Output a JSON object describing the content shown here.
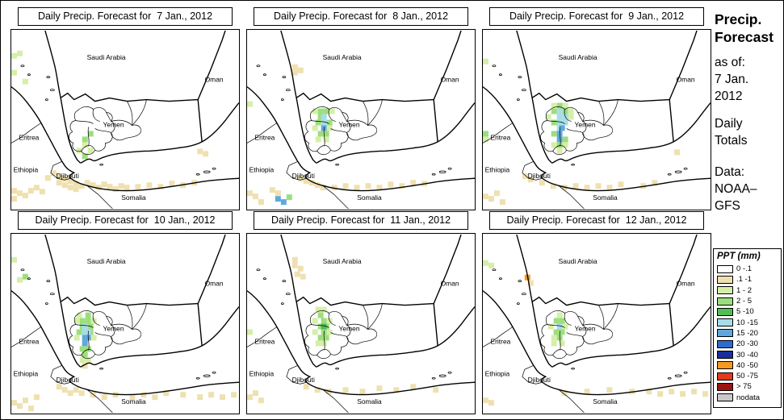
{
  "panels": [
    {
      "title": "Daily Precip. Forecast for  7 Jan., 2012"
    },
    {
      "title": "Daily Precip. Forecast for  8 Jan., 2012"
    },
    {
      "title": "Daily Precip. Forecast for  9 Jan., 2012"
    },
    {
      "title": "Daily Precip. Forecast for  10 Jan., 2012"
    },
    {
      "title": "Daily Precip. Forecast for  11 Jan., 2012"
    },
    {
      "title": "Daily Precip. Forecast for  12 Jan., 2012"
    }
  ],
  "map_labels": {
    "saudi_arabia": "Saudi Arabia",
    "oman": "Oman",
    "yemen": "Yemen",
    "eritrea": "Eritrea",
    "ethiopia": "Ethiopia",
    "djibouti": "Djibouti",
    "somalia": "Somalia"
  },
  "sidebar": {
    "title_line1": "Precip.",
    "title_line2": "Forecast",
    "asof_line1": "as of:",
    "asof_line2": "7 Jan.",
    "asof_line3": "2012",
    "totals_line1": "Daily",
    "totals_line2": "Totals",
    "data_line1": "Data:",
    "data_line2": "NOAA–",
    "data_line3": "GFS"
  },
  "legend": {
    "title": "PPT (mm)",
    "entries": [
      {
        "label": "0 -.1",
        "color": "#FFFFFF"
      },
      {
        "label": ".1 -1",
        "color": "#EFE0B0"
      },
      {
        "label": "1 - 2",
        "color": "#D5EFA8"
      },
      {
        "label": "2 - 5",
        "color": "#9CDE7C"
      },
      {
        "label": "5 -10",
        "color": "#4FBF54"
      },
      {
        "label": "10 -15",
        "color": "#A6DDE8"
      },
      {
        "label": "15 -20",
        "color": "#5FA8DE"
      },
      {
        "label": "20 -30",
        "color": "#2E6BCE"
      },
      {
        "label": "30 -40",
        "color": "#1B2E9E"
      },
      {
        "label": "40 -50",
        "color": "#F5991F"
      },
      {
        "label": "50 -75",
        "color": "#E23A1C"
      },
      {
        "label": "> 75",
        "color": "#9C1410"
      },
      {
        "label": "nodata",
        "color": "#C9C9C9"
      }
    ]
  },
  "precip": {
    "cell": 7,
    "palette": {
      "t": "#EFE0B0",
      "g1": "#D5EFA8",
      "g2": "#9CDE7C",
      "g3": "#4FBF54",
      "b1": "#A6DDE8",
      "b2": "#5FA8DE",
      "b3": "#2E6BCE",
      "o": "#F5991F"
    },
    "panels": [
      [
        [
          56,
          178,
          "t"
        ],
        [
          63,
          181,
          "t"
        ],
        [
          49,
          174,
          "t"
        ],
        [
          70,
          184,
          "t"
        ],
        [
          77,
          187,
          "t"
        ],
        [
          84,
          190,
          "t"
        ],
        [
          91,
          186,
          "t"
        ],
        [
          98,
          189,
          "t"
        ],
        [
          105,
          192,
          "t"
        ],
        [
          112,
          188,
          "t"
        ],
        [
          119,
          191,
          "t"
        ],
        [
          126,
          194,
          "t"
        ],
        [
          133,
          190,
          "t"
        ],
        [
          140,
          192,
          "t"
        ],
        [
          154,
          191,
          "t"
        ],
        [
          168,
          189,
          "t"
        ],
        [
          182,
          191,
          "t"
        ],
        [
          196,
          187,
          "t"
        ],
        [
          210,
          189,
          "t"
        ],
        [
          224,
          186,
          "t"
        ],
        [
          63,
          189,
          "t"
        ],
        [
          70,
          192,
          "t"
        ],
        [
          77,
          194,
          "t"
        ],
        [
          56,
          186,
          "t"
        ],
        [
          42,
          180,
          "t"
        ],
        [
          0,
          196,
          "t"
        ],
        [
          7,
          199,
          "t"
        ],
        [
          14,
          202,
          "t"
        ],
        [
          21,
          196,
          "t"
        ],
        [
          28,
          192,
          "t"
        ],
        [
          35,
          197,
          "t"
        ],
        [
          0,
          206,
          "t"
        ],
        [
          231,
          147,
          "t"
        ],
        [
          238,
          150,
          "t"
        ],
        [
          0,
          28,
          "g1"
        ],
        [
          7,
          25,
          "g1"
        ],
        [
          0,
          49,
          "g1"
        ],
        [
          14,
          60,
          "g1"
        ],
        [
          88,
          139,
          "g1"
        ],
        [
          81,
          146,
          "g1"
        ],
        [
          95,
          146,
          "g1"
        ],
        [
          88,
          132,
          "g2"
        ],
        [
          95,
          125,
          "g2"
        ],
        [
          88,
          153,
          "g2"
        ]
      ],
      [
        [
          88,
          97,
          "g2"
        ],
        [
          95,
          97,
          "g2"
        ],
        [
          88,
          104,
          "g2"
        ],
        [
          85,
          111,
          "g2"
        ],
        [
          99,
          111,
          "g2"
        ],
        [
          88,
          125,
          "g2"
        ],
        [
          95,
          125,
          "g2"
        ],
        [
          49,
          204,
          "g2"
        ],
        [
          92,
          104,
          "b1"
        ],
        [
          92,
          111,
          "b1"
        ],
        [
          92,
          118,
          "b2"
        ],
        [
          35,
          206,
          "b2"
        ],
        [
          42,
          210,
          "b2"
        ],
        [
          81,
          97,
          "g1"
        ],
        [
          102,
          97,
          "g1"
        ],
        [
          81,
          118,
          "g1"
        ],
        [
          99,
          118,
          "g1"
        ],
        [
          85,
          132,
          "g1"
        ],
        [
          95,
          132,
          "g1"
        ],
        [
          0,
          88,
          "g1"
        ],
        [
          56,
          42,
          "t"
        ],
        [
          63,
          46,
          "t"
        ],
        [
          56,
          49,
          "t"
        ],
        [
          63,
          181,
          "t"
        ],
        [
          70,
          184,
          "t"
        ],
        [
          77,
          186,
          "t"
        ],
        [
          84,
          189,
          "t"
        ],
        [
          91,
          192,
          "t"
        ],
        [
          105,
          192,
          "t"
        ],
        [
          119,
          190,
          "t"
        ],
        [
          133,
          192,
          "t"
        ],
        [
          147,
          190,
          "t"
        ],
        [
          161,
          192,
          "t"
        ],
        [
          175,
          188,
          "t"
        ],
        [
          189,
          190,
          "t"
        ],
        [
          203,
          186,
          "t"
        ],
        [
          0,
          199,
          "t"
        ],
        [
          7,
          203,
          "t"
        ],
        [
          28,
          195,
          "t"
        ],
        [
          35,
          199,
          "t"
        ],
        [
          14,
          210,
          "t"
        ],
        [
          217,
          187,
          "t"
        ]
      ],
      [
        [
          92,
          97,
          "b1"
        ],
        [
          92,
          104,
          "b1"
        ],
        [
          99,
          104,
          "b1"
        ],
        [
          92,
          111,
          "b1"
        ],
        [
          99,
          111,
          "b1"
        ],
        [
          92,
          118,
          "b1"
        ],
        [
          92,
          125,
          "b2"
        ],
        [
          95,
          118,
          "b2"
        ],
        [
          92,
          132,
          "b2"
        ],
        [
          85,
          97,
          "g2"
        ],
        [
          99,
          97,
          "g2"
        ],
        [
          85,
          111,
          "g2"
        ],
        [
          85,
          125,
          "g2"
        ],
        [
          99,
          132,
          "g2"
        ],
        [
          92,
          139,
          "g2"
        ],
        [
          92,
          90,
          "g2"
        ],
        [
          0,
          125,
          "g2"
        ],
        [
          78,
          104,
          "g1"
        ],
        [
          106,
          104,
          "g1"
        ],
        [
          85,
          139,
          "g1"
        ],
        [
          99,
          139,
          "g1"
        ],
        [
          92,
          146,
          "g1"
        ],
        [
          85,
          90,
          "g1"
        ],
        [
          106,
          97,
          "g1"
        ],
        [
          99,
          90,
          "g1"
        ],
        [
          0,
          132,
          "g1"
        ],
        [
          0,
          35,
          "g1"
        ],
        [
          70,
          186,
          "t"
        ],
        [
          84,
          190,
          "t"
        ],
        [
          98,
          192,
          "t"
        ],
        [
          112,
          190,
          "t"
        ],
        [
          126,
          192,
          "t"
        ],
        [
          140,
          190,
          "t"
        ],
        [
          154,
          192,
          "t"
        ],
        [
          168,
          188,
          "t"
        ],
        [
          196,
          190,
          "t"
        ],
        [
          210,
          186,
          "t"
        ],
        [
          49,
          178,
          "t"
        ],
        [
          56,
          182,
          "t"
        ],
        [
          0,
          203,
          "t"
        ],
        [
          7,
          206,
          "t"
        ],
        [
          14,
          199,
          "t"
        ],
        [
          21,
          210,
          "t"
        ],
        [
          238,
          148,
          "t"
        ]
      ],
      [
        [
          85,
          104,
          "g2"
        ],
        [
          92,
          104,
          "g2"
        ],
        [
          85,
          111,
          "g2"
        ],
        [
          92,
          97,
          "g2"
        ],
        [
          95,
          111,
          "g2"
        ],
        [
          95,
          118,
          "g2"
        ],
        [
          81,
          118,
          "g2"
        ],
        [
          85,
          139,
          "g2"
        ],
        [
          92,
          139,
          "g2"
        ],
        [
          88,
          146,
          "g2"
        ],
        [
          14,
          49,
          "g2"
        ],
        [
          88,
          111,
          "b1"
        ],
        [
          88,
          118,
          "b1"
        ],
        [
          92,
          118,
          "b1"
        ],
        [
          88,
          125,
          "b2"
        ],
        [
          92,
          125,
          "b2"
        ],
        [
          88,
          132,
          "b2"
        ],
        [
          78,
          104,
          "g1"
        ],
        [
          99,
          104,
          "g1"
        ],
        [
          78,
          125,
          "g1"
        ],
        [
          99,
          125,
          "g1"
        ],
        [
          85,
          153,
          "g1"
        ],
        [
          92,
          153,
          "g1"
        ],
        [
          81,
          97,
          "g1"
        ],
        [
          7,
          53,
          "g1"
        ],
        [
          0,
          28,
          "g1"
        ],
        [
          88,
          160,
          "t"
        ],
        [
          98,
          196,
          "t"
        ],
        [
          112,
          199,
          "t"
        ],
        [
          126,
          196,
          "t"
        ],
        [
          147,
          199,
          "t"
        ],
        [
          161,
          196,
          "t"
        ],
        [
          175,
          199,
          "t"
        ],
        [
          189,
          194,
          "t"
        ],
        [
          210,
          196,
          "t"
        ],
        [
          231,
          199,
          "t"
        ],
        [
          245,
          196,
          "t"
        ],
        [
          259,
          199,
          "t"
        ],
        [
          273,
          196,
          "t"
        ],
        [
          0,
          206,
          "t"
        ],
        [
          7,
          210,
          "t"
        ],
        [
          14,
          203,
          "t"
        ],
        [
          28,
          199,
          "t"
        ],
        [
          21,
          213,
          "t"
        ],
        [
          56,
          186,
          "t"
        ],
        [
          63,
          190,
          "t"
        ],
        [
          70,
          194,
          "t"
        ],
        [
          77,
          190,
          "t"
        ],
        [
          84,
          194,
          "t"
        ]
      ],
      [
        [
          88,
          97,
          "g2"
        ],
        [
          92,
          104,
          "g2"
        ],
        [
          88,
          111,
          "g2"
        ],
        [
          95,
          111,
          "g2"
        ],
        [
          92,
          118,
          "g2"
        ],
        [
          88,
          125,
          "g2"
        ],
        [
          95,
          125,
          "g2"
        ],
        [
          92,
          111,
          "g3"
        ],
        [
          81,
          104,
          "g1"
        ],
        [
          99,
          104,
          "g1"
        ],
        [
          85,
          132,
          "g1"
        ],
        [
          92,
          132,
          "g1"
        ],
        [
          99,
          118,
          "g1"
        ],
        [
          85,
          90,
          "g1"
        ],
        [
          92,
          90,
          "g1"
        ],
        [
          81,
          118,
          "g1"
        ],
        [
          0,
          118,
          "g1"
        ],
        [
          56,
          28,
          "t"
        ],
        [
          56,
          35,
          "t"
        ],
        [
          63,
          39,
          "t"
        ],
        [
          59,
          46,
          "t"
        ],
        [
          66,
          49,
          "t"
        ],
        [
          84,
          190,
          "t"
        ],
        [
          98,
          192,
          "t"
        ],
        [
          119,
          190,
          "t"
        ],
        [
          140,
          192,
          "t"
        ],
        [
          161,
          188,
          "t"
        ],
        [
          182,
          190,
          "t"
        ],
        [
          203,
          186,
          "t"
        ],
        [
          70,
          186,
          "t"
        ],
        [
          231,
          190,
          "t"
        ],
        [
          0,
          199,
          "t"
        ],
        [
          14,
          203,
          "t"
        ],
        [
          7,
          194,
          "t"
        ]
      ],
      [
        [
          88,
          104,
          "g2"
        ],
        [
          95,
          104,
          "g2"
        ],
        [
          88,
          118,
          "g2"
        ],
        [
          95,
          118,
          "g2"
        ],
        [
          92,
          125,
          "g2"
        ],
        [
          92,
          111,
          "b1"
        ],
        [
          81,
          111,
          "g1"
        ],
        [
          99,
          111,
          "g1"
        ],
        [
          85,
          132,
          "g1"
        ],
        [
          92,
          97,
          "g1"
        ],
        [
          95,
          132,
          "g1"
        ],
        [
          85,
          125,
          "g1"
        ],
        [
          0,
          32,
          "g1"
        ],
        [
          7,
          35,
          "g1"
        ],
        [
          52,
          50,
          "o"
        ],
        [
          56,
          57,
          "t"
        ],
        [
          231,
          192,
          "t"
        ],
        [
          245,
          195,
          "t"
        ],
        [
          259,
          192,
          "t"
        ],
        [
          217,
          195,
          "t"
        ],
        [
          273,
          195,
          "t"
        ],
        [
          203,
          192,
          "t"
        ],
        [
          0,
          203,
          "t"
        ],
        [
          7,
          206,
          "t"
        ],
        [
          98,
          194,
          "t"
        ],
        [
          126,
          192,
          "t"
        ],
        [
          154,
          190,
          "t"
        ],
        [
          182,
          192,
          "t"
        ]
      ]
    ]
  }
}
